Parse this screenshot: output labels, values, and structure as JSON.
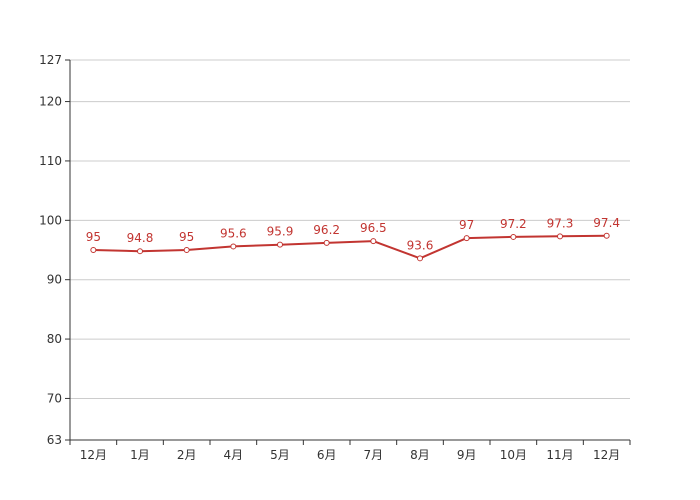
{
  "chart_data": {
    "type": "line",
    "title": "",
    "xlabel": "",
    "ylabel": "",
    "categories": [
      "12月",
      "1月",
      "2月",
      "4月",
      "5月",
      "6月",
      "7月",
      "8月",
      "9月",
      "10月",
      "11月",
      "12月"
    ],
    "series": [
      {
        "values": [
          95,
          94.8,
          95,
          95.6,
          95.9,
          96.2,
          96.5,
          93.6,
          97,
          97.2,
          97.3,
          97.4
        ],
        "labels": [
          "95",
          "94.8",
          "95",
          "95.6",
          "95.9",
          "96.2",
          "96.5",
          "93.6",
          "97",
          "97.2",
          "97.3",
          "97.4"
        ],
        "color": "#c23531"
      }
    ],
    "ylim": [
      63,
      127
    ],
    "yticks": [
      63,
      70,
      80,
      90,
      100,
      110,
      120,
      127
    ],
    "grid": true,
    "legend": "none"
  }
}
